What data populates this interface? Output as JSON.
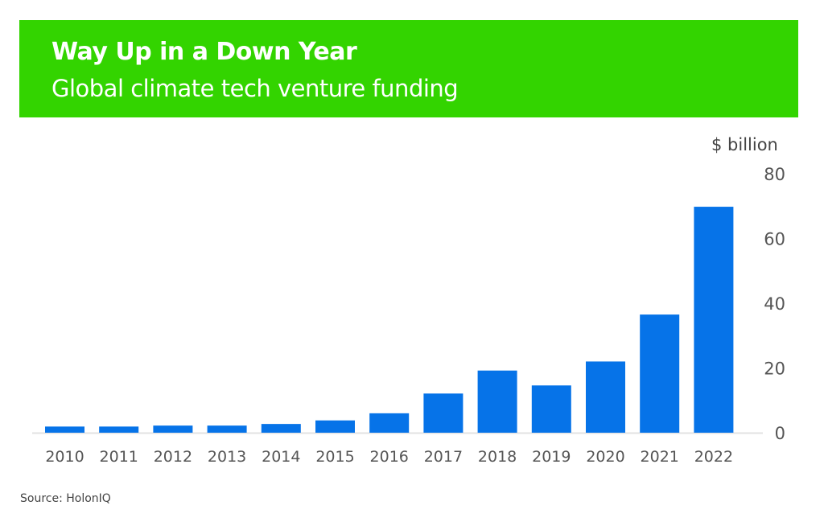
{
  "chart_data": {
    "type": "bar",
    "title": "Way Up in a Down Year",
    "subtitle": "Global climate tech venture funding",
    "ylabel": "$ billion",
    "xlabel": "",
    "categories": [
      "2010",
      "2011",
      "2012",
      "2013",
      "2014",
      "2015",
      "2016",
      "2017",
      "2018",
      "2019",
      "2020",
      "2021",
      "2022"
    ],
    "values": [
      1.9,
      1.9,
      2.2,
      2.2,
      2.7,
      3.8,
      6.0,
      12.1,
      19.2,
      14.6,
      22.0,
      36.5,
      69.8
    ],
    "ylim": [
      0,
      80
    ],
    "yticks": [
      "0",
      "20",
      "40",
      "60",
      "80"
    ],
    "y_axis_position": "right",
    "grid": false,
    "bar_color": "#0673e8",
    "header_color": "#33d400",
    "source": "Source: HolonIQ"
  }
}
